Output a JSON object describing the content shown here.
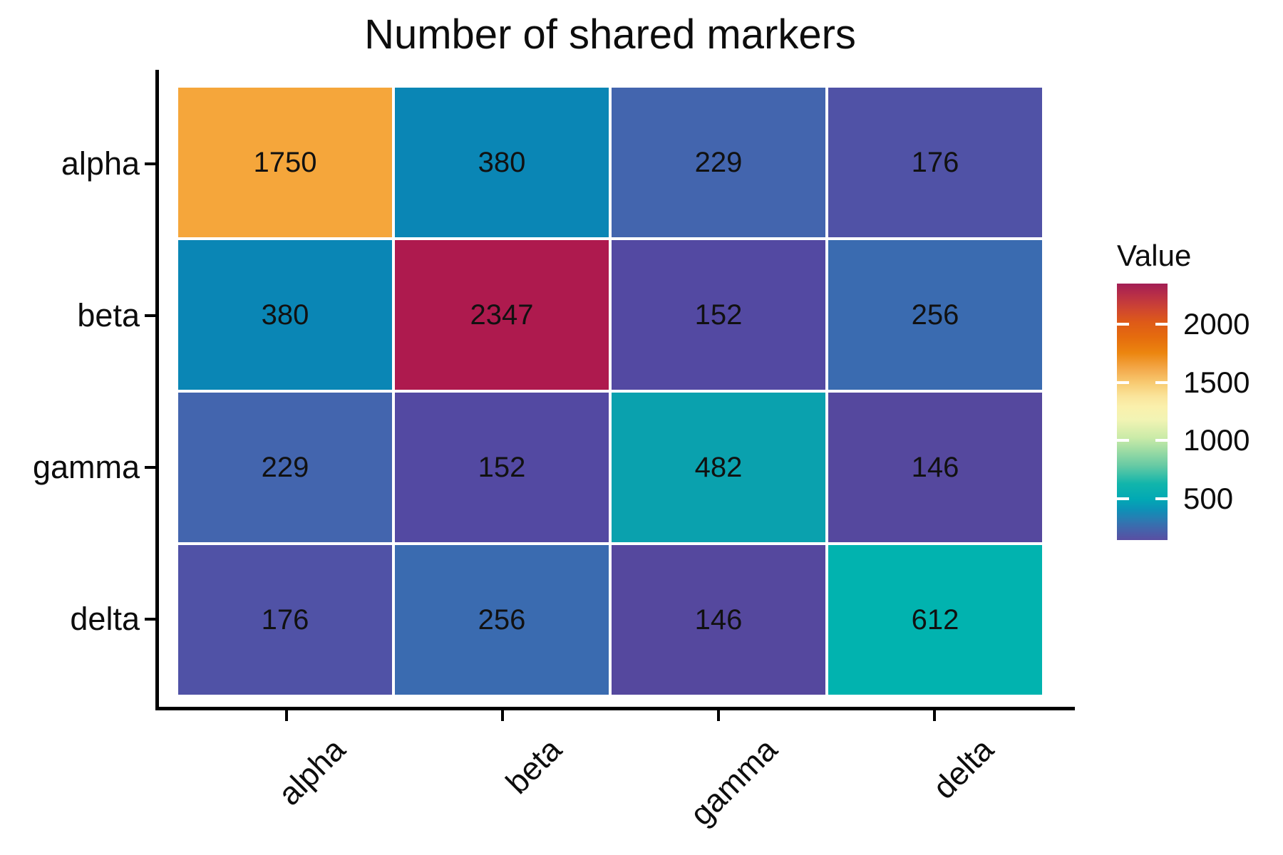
{
  "title": "Number of shared markers",
  "chart_data": {
    "type": "heatmap",
    "title": "Number of shared markers",
    "rows": [
      "alpha",
      "beta",
      "gamma",
      "delta"
    ],
    "columns": [
      "alpha",
      "beta",
      "gamma",
      "delta"
    ],
    "values": [
      [
        1750,
        380,
        229,
        176
      ],
      [
        380,
        2347,
        152,
        256
      ],
      [
        229,
        152,
        482,
        146
      ],
      [
        176,
        256,
        146,
        612
      ]
    ],
    "value_range": [
      146,
      2347
    ],
    "cell_colors": [
      [
        "#F5A63B",
        "#0A86B5",
        "#4365AE",
        "#5052A6"
      ],
      [
        "#0A86B5",
        "#AE1A4E",
        "#5349A2",
        "#3A6BB0"
      ],
      [
        "#4365AE",
        "#5349A2",
        "#0AA1AE",
        "#55489E"
      ],
      [
        "#5052A6",
        "#3A6BB0",
        "#55489E",
        "#01B3AF"
      ]
    ],
    "grid_line_color": "#ffffff",
    "axis_text_color": "#0d0d0d",
    "legend": {
      "title": "Value",
      "position": "right",
      "ticks": [
        2000,
        1500,
        1000,
        500
      ],
      "gradient_stops_bottom_to_top": [
        {
          "pos": 0.0,
          "color": "#5A4FA2"
        },
        {
          "pos": 0.04,
          "color": "#4463AB"
        },
        {
          "pos": 0.08,
          "color": "#2A7BB2"
        },
        {
          "pos": 0.12,
          "color": "#0D92B7"
        },
        {
          "pos": 0.16,
          "color": "#01A9B4"
        },
        {
          "pos": 0.22,
          "color": "#12B5AB"
        },
        {
          "pos": 0.29,
          "color": "#66CAA4"
        },
        {
          "pos": 0.35,
          "color": "#9EDCA4"
        },
        {
          "pos": 0.4,
          "color": "#CBEBA8"
        },
        {
          "pos": 0.47,
          "color": "#F2F4B4"
        },
        {
          "pos": 0.52,
          "color": "#FAF0AC"
        },
        {
          "pos": 0.56,
          "color": "#FAE49B"
        },
        {
          "pos": 0.61,
          "color": "#F8CC74"
        },
        {
          "pos": 0.67,
          "color": "#F3A748"
        },
        {
          "pos": 0.73,
          "color": "#EC850F"
        },
        {
          "pos": 0.79,
          "color": "#E56C0E"
        },
        {
          "pos": 0.85,
          "color": "#DE5A18"
        },
        {
          "pos": 0.9,
          "color": "#CF4630"
        },
        {
          "pos": 0.95,
          "color": "#BB3145"
        },
        {
          "pos": 1.0,
          "color": "#A21E55"
        }
      ]
    }
  }
}
